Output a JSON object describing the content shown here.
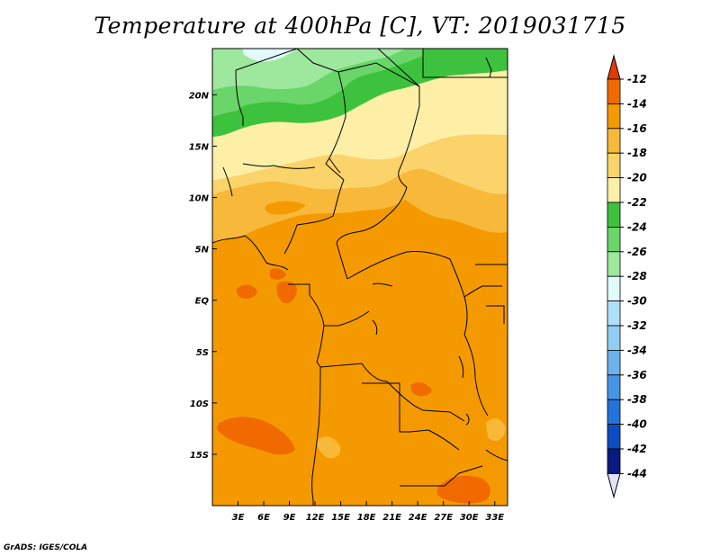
{
  "title": "Temperature at 400hPa [C], VT: 2019031715",
  "credit": "GrADS: IGES/COLA",
  "colors": {
    "band_-12": "#e03c00",
    "band_-14": "#f06a00",
    "band_-16": "#f49a00",
    "band_-18": "#f8b83a",
    "band_-20": "#fad46a",
    "band_-22": "#fdefa6",
    "band_-24": "#3cc23c",
    "band_-26": "#6ad66a",
    "band_-28": "#9ee89e",
    "band_-30": "#e2fafa",
    "band_-32": "#b0e0f8",
    "band_-34": "#90cef4",
    "band_-36": "#6cb2ee",
    "band_-38": "#4894e6",
    "band_-40": "#2472dc",
    "band_-42": "#0e4cc2",
    "band_-44": "#0a1a80",
    "band_low": "#e2e2f8",
    "boundaries": "#000000"
  },
  "chart_data": {
    "type": "heatmap",
    "variable": "Temperature at 400hPa",
    "unit": "C",
    "valid_time": "2019031715",
    "x_ticks": [
      "3E",
      "6E",
      "9E",
      "12E",
      "15E",
      "18E",
      "21E",
      "24E",
      "27E",
      "30E",
      "33E"
    ],
    "y_ticks": [
      "20N",
      "15N",
      "10N",
      "5N",
      "EQ",
      "5S",
      "10S",
      "15S"
    ],
    "xlim": [
      0,
      34.5
    ],
    "ylim": [
      -20,
      24.5
    ],
    "colorbar_levels": [
      "-12",
      "-14",
      "-16",
      "-18",
      "-20",
      "-22",
      "-24",
      "-26",
      "-28",
      "-30",
      "-32",
      "-34",
      "-36",
      "-38",
      "-40",
      "-42",
      "-44"
    ],
    "colorbar_values": [
      -12,
      -14,
      -16,
      -18,
      -20,
      -22,
      -24,
      -26,
      -28,
      -30,
      -32,
      -34,
      -36,
      -38,
      -40,
      -42,
      -44
    ],
    "regions": [
      {
        "band": "-30",
        "desc": "northwest corner near 23-24N"
      },
      {
        "band": "-28",
        "desc": "north edge 20-24N"
      },
      {
        "band": "-26",
        "desc": "north band 19-23N"
      },
      {
        "band": "-24",
        "desc": "strip around 18-21N"
      },
      {
        "band": "-22",
        "desc": "Sahel belt 14-18N"
      },
      {
        "band": "-20",
        "desc": "belt 11-15N"
      },
      {
        "band": "-18",
        "desc": "belt 8-12N"
      },
      {
        "band": "-16",
        "desc": "central Africa 5N-20S"
      },
      {
        "band": "-14",
        "desc": "Gulf of Guinea and SW Atlantic patches"
      }
    ]
  }
}
